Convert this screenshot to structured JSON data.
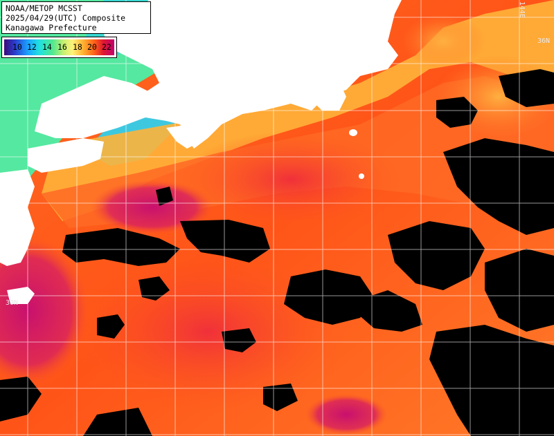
{
  "header": {
    "line1": "NOAA/METOP MCSST",
    "line2": "2025/04/29(UTC) Composite",
    "line3": "Kanagawa Prefecture"
  },
  "color_scale": {
    "ticks": [
      "10",
      "12",
      "14",
      "16",
      "18",
      "20",
      "22"
    ],
    "colors": [
      "#3a0a7a",
      "#2a3fd0",
      "#1aa6ff",
      "#22e0e0",
      "#50e890",
      "#c8f070",
      "#fff27a",
      "#ffb030",
      "#ff6018",
      "#e01830",
      "#c00070"
    ]
  },
  "grid_labels": {
    "lat_north": "36N",
    "lat_south": "30N",
    "lon_east": "144E"
  },
  "palette": {
    "land": "#ffffff",
    "cloud": "#000000",
    "cold_water": "#55e8a0",
    "warm_water": "#ff5a1e",
    "hot_water": "#c8146e",
    "grid": "#ffffff"
  }
}
